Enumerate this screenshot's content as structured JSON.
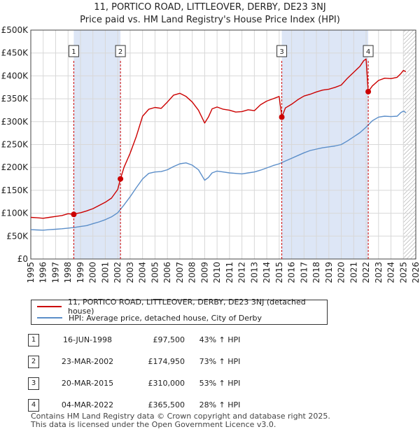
{
  "title": "11, PORTICO ROAD, LITTLEOVER, DERBY, DE23 3NJ",
  "subtitle": "Price paid vs. HM Land Registry's House Price Index (HPI)",
  "colors": {
    "property": "#cc0000",
    "hpi": "#5b8ec9",
    "shade": "#dde6f6",
    "marker_line": "#cc0000"
  },
  "chart_data": {
    "type": "line",
    "title": "11, PORTICO ROAD, LITTLEOVER, DERBY, DE23 3NJ",
    "subtitle": "Price paid vs. HM Land Registry's House Price Index (HPI)",
    "xlabel": "",
    "ylabel": "",
    "xlim": [
      1995,
      2026
    ],
    "ylim": [
      0,
      500000
    ],
    "y_ticks": [
      0,
      50000,
      100000,
      150000,
      200000,
      250000,
      300000,
      350000,
      400000,
      450000,
      500000
    ],
    "y_tick_labels": [
      "£0",
      "£50K",
      "£100K",
      "£150K",
      "£200K",
      "£250K",
      "£300K",
      "£350K",
      "£400K",
      "£450K",
      "£500K"
    ],
    "x_ticks": [
      1995,
      1996,
      1997,
      1998,
      1999,
      2000,
      2001,
      2002,
      2003,
      2004,
      2005,
      2006,
      2007,
      2008,
      2009,
      2010,
      2011,
      2012,
      2013,
      2014,
      2015,
      2016,
      2017,
      2018,
      2019,
      2020,
      2021,
      2022,
      2023,
      2024,
      2025,
      2026
    ],
    "x_tick_labels": [
      "1995",
      "1996",
      "1997",
      "1998",
      "1999",
      "2000",
      "2001",
      "2002",
      "2003",
      "2004",
      "2005",
      "2006",
      "2007",
      "2008",
      "2009",
      "2010",
      "2011",
      "2012",
      "2013",
      "2014",
      "2015",
      "2016",
      "2017",
      "2018",
      "2019",
      "2020",
      "2021",
      "2022",
      "2023",
      "2024",
      "2025",
      "2026"
    ],
    "grid": true,
    "legend_position": "below",
    "series": [
      {
        "name": "11, PORTICO ROAD, LITTLEOVER, DERBY, DE23 3NJ (detached house)",
        "x": [
          1995.0,
          1995.5,
          1996.0,
          1996.5,
          1997.0,
          1997.5,
          1998.0,
          1998.46,
          1998.8,
          1999.0,
          1999.5,
          2000.0,
          2000.5,
          2001.0,
          2001.5,
          2002.0,
          2002.22,
          2002.5,
          2003.0,
          2003.5,
          2004.0,
          2004.5,
          2005.0,
          2005.5,
          2006.0,
          2006.5,
          2007.0,
          2007.5,
          2008.0,
          2008.5,
          2009.0,
          2009.3,
          2009.6,
          2010.0,
          2010.5,
          2011.0,
          2011.5,
          2012.0,
          2012.5,
          2013.0,
          2013.5,
          2014.0,
          2014.5,
          2015.0,
          2015.21,
          2015.5,
          2016.0,
          2016.5,
          2017.0,
          2017.5,
          2018.0,
          2018.5,
          2019.0,
          2019.5,
          2020.0,
          2020.5,
          2021.0,
          2021.5,
          2021.8,
          2022.0,
          2022.17,
          2022.5,
          2023.0,
          2023.5,
          2024.0,
          2024.5,
          2024.8,
          2025.0,
          2025.2
        ],
        "y": [
          91000,
          90000,
          89000,
          91000,
          93000,
          95000,
          99000,
          97500,
          100000,
          101000,
          105000,
          110000,
          117000,
          124000,
          133000,
          152000,
          174950,
          200000,
          231000,
          268000,
          312000,
          327000,
          331000,
          329000,
          343000,
          358000,
          362000,
          355000,
          343000,
          325000,
          297000,
          310000,
          328000,
          332000,
          327000,
          325000,
          321000,
          322000,
          326000,
          324000,
          337000,
          345000,
          350000,
          355000,
          310000,
          330000,
          338000,
          348000,
          356000,
          360000,
          365000,
          369000,
          371000,
          375000,
          380000,
          395000,
          408000,
          421000,
          433000,
          437000,
          365500,
          378000,
          390000,
          395000,
          394000,
          397000,
          405000,
          412000,
          409000
        ]
      },
      {
        "name": "HPI: Average price, detached house, City of Derby",
        "x": [
          1995.0,
          1995.5,
          1996.0,
          1996.5,
          1997.0,
          1997.5,
          1998.0,
          1998.5,
          1999.0,
          1999.5,
          2000.0,
          2000.5,
          2001.0,
          2001.5,
          2002.0,
          2002.5,
          2003.0,
          2003.5,
          2004.0,
          2004.5,
          2005.0,
          2005.5,
          2006.0,
          2006.5,
          2007.0,
          2007.5,
          2008.0,
          2008.5,
          2009.0,
          2009.3,
          2009.6,
          2010.0,
          2010.5,
          2011.0,
          2011.5,
          2012.0,
          2012.5,
          2013.0,
          2013.5,
          2014.0,
          2014.5,
          2015.0,
          2015.5,
          2016.0,
          2016.5,
          2017.0,
          2017.5,
          2018.0,
          2018.5,
          2019.0,
          2019.5,
          2020.0,
          2020.5,
          2021.0,
          2021.5,
          2022.0,
          2022.5,
          2023.0,
          2023.5,
          2024.0,
          2024.5,
          2024.8,
          2025.0,
          2025.2
        ],
        "y": [
          64000,
          63500,
          63000,
          64000,
          65000,
          66000,
          67500,
          69000,
          71000,
          73000,
          77000,
          81000,
          86000,
          92000,
          101000,
          118000,
          136000,
          156000,
          175000,
          187000,
          190000,
          191000,
          195000,
          202000,
          208000,
          210000,
          205000,
          195000,
          172000,
          178000,
          188000,
          192000,
          190000,
          188000,
          187000,
          186000,
          188000,
          190000,
          194000,
          199000,
          204000,
          208000,
          214000,
          220000,
          226000,
          232000,
          237000,
          240000,
          243000,
          245000,
          247000,
          250000,
          258000,
          267000,
          276000,
          288000,
          302000,
          310000,
          312000,
          311000,
          312000,
          320000,
          323000,
          320000
        ]
      }
    ],
    "sales": [
      {
        "num": "1",
        "x": 1998.46,
        "y": 97500
      },
      {
        "num": "2",
        "x": 2002.22,
        "y": 174950
      },
      {
        "num": "3",
        "x": 2015.21,
        "y": 310000
      },
      {
        "num": "4",
        "x": 2022.17,
        "y": 365500
      }
    ],
    "shaded_ranges": [
      [
        1998.46,
        2002.22
      ],
      [
        2015.21,
        2022.17
      ]
    ],
    "hatched_from": 2025.0
  },
  "legend": {
    "property_label": "11, PORTICO ROAD, LITTLEOVER, DERBY, DE23 3NJ (detached house)",
    "hpi_label": "HPI: Average price, detached house, City of Derby"
  },
  "table": [
    {
      "num": "1",
      "date": "16-JUN-1998",
      "price": "£97,500",
      "hpi": "43% ↑ HPI"
    },
    {
      "num": "2",
      "date": "23-MAR-2002",
      "price": "£174,950",
      "hpi": "73% ↑ HPI"
    },
    {
      "num": "3",
      "date": "20-MAR-2015",
      "price": "£310,000",
      "hpi": "53% ↑ HPI"
    },
    {
      "num": "4",
      "date": "04-MAR-2022",
      "price": "£365,500",
      "hpi": "28% ↑ HPI"
    }
  ],
  "footer": {
    "line1": "Contains HM Land Registry data © Crown copyright and database right 2025.",
    "line2": "This data is licensed under the Open Government Licence v3.0."
  }
}
